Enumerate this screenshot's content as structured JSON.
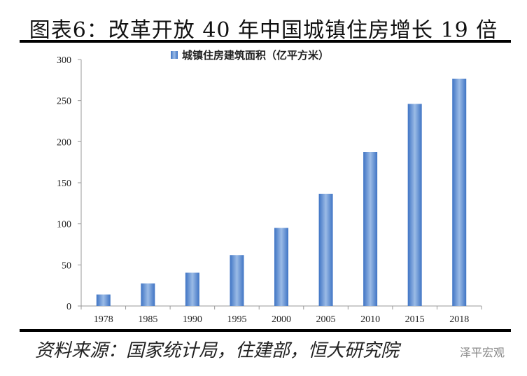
{
  "title": "图表6：改革开放 40 年中国城镇住房增长 19 倍",
  "source": "资料来源：国家统计局，住建部，恒大研究院",
  "watermark": "泽平宏观",
  "chart_data": {
    "type": "bar",
    "title": "",
    "xlabel": "",
    "ylabel": "",
    "categories": [
      "1978",
      "1985",
      "1990",
      "1995",
      "2000",
      "2005",
      "2010",
      "2015",
      "2018"
    ],
    "series": [
      {
        "name": "城镇住房建筑面积（亿平方米）",
        "values": [
          14,
          27.5,
          40.5,
          62,
          95,
          136.5,
          187.5,
          246,
          276.5
        ],
        "color": "#5b8fd4"
      }
    ],
    "ylim": [
      0,
      300
    ],
    "yticks": [
      0,
      50,
      100,
      150,
      200,
      250,
      300
    ],
    "grid": false,
    "legend": "top-center"
  }
}
